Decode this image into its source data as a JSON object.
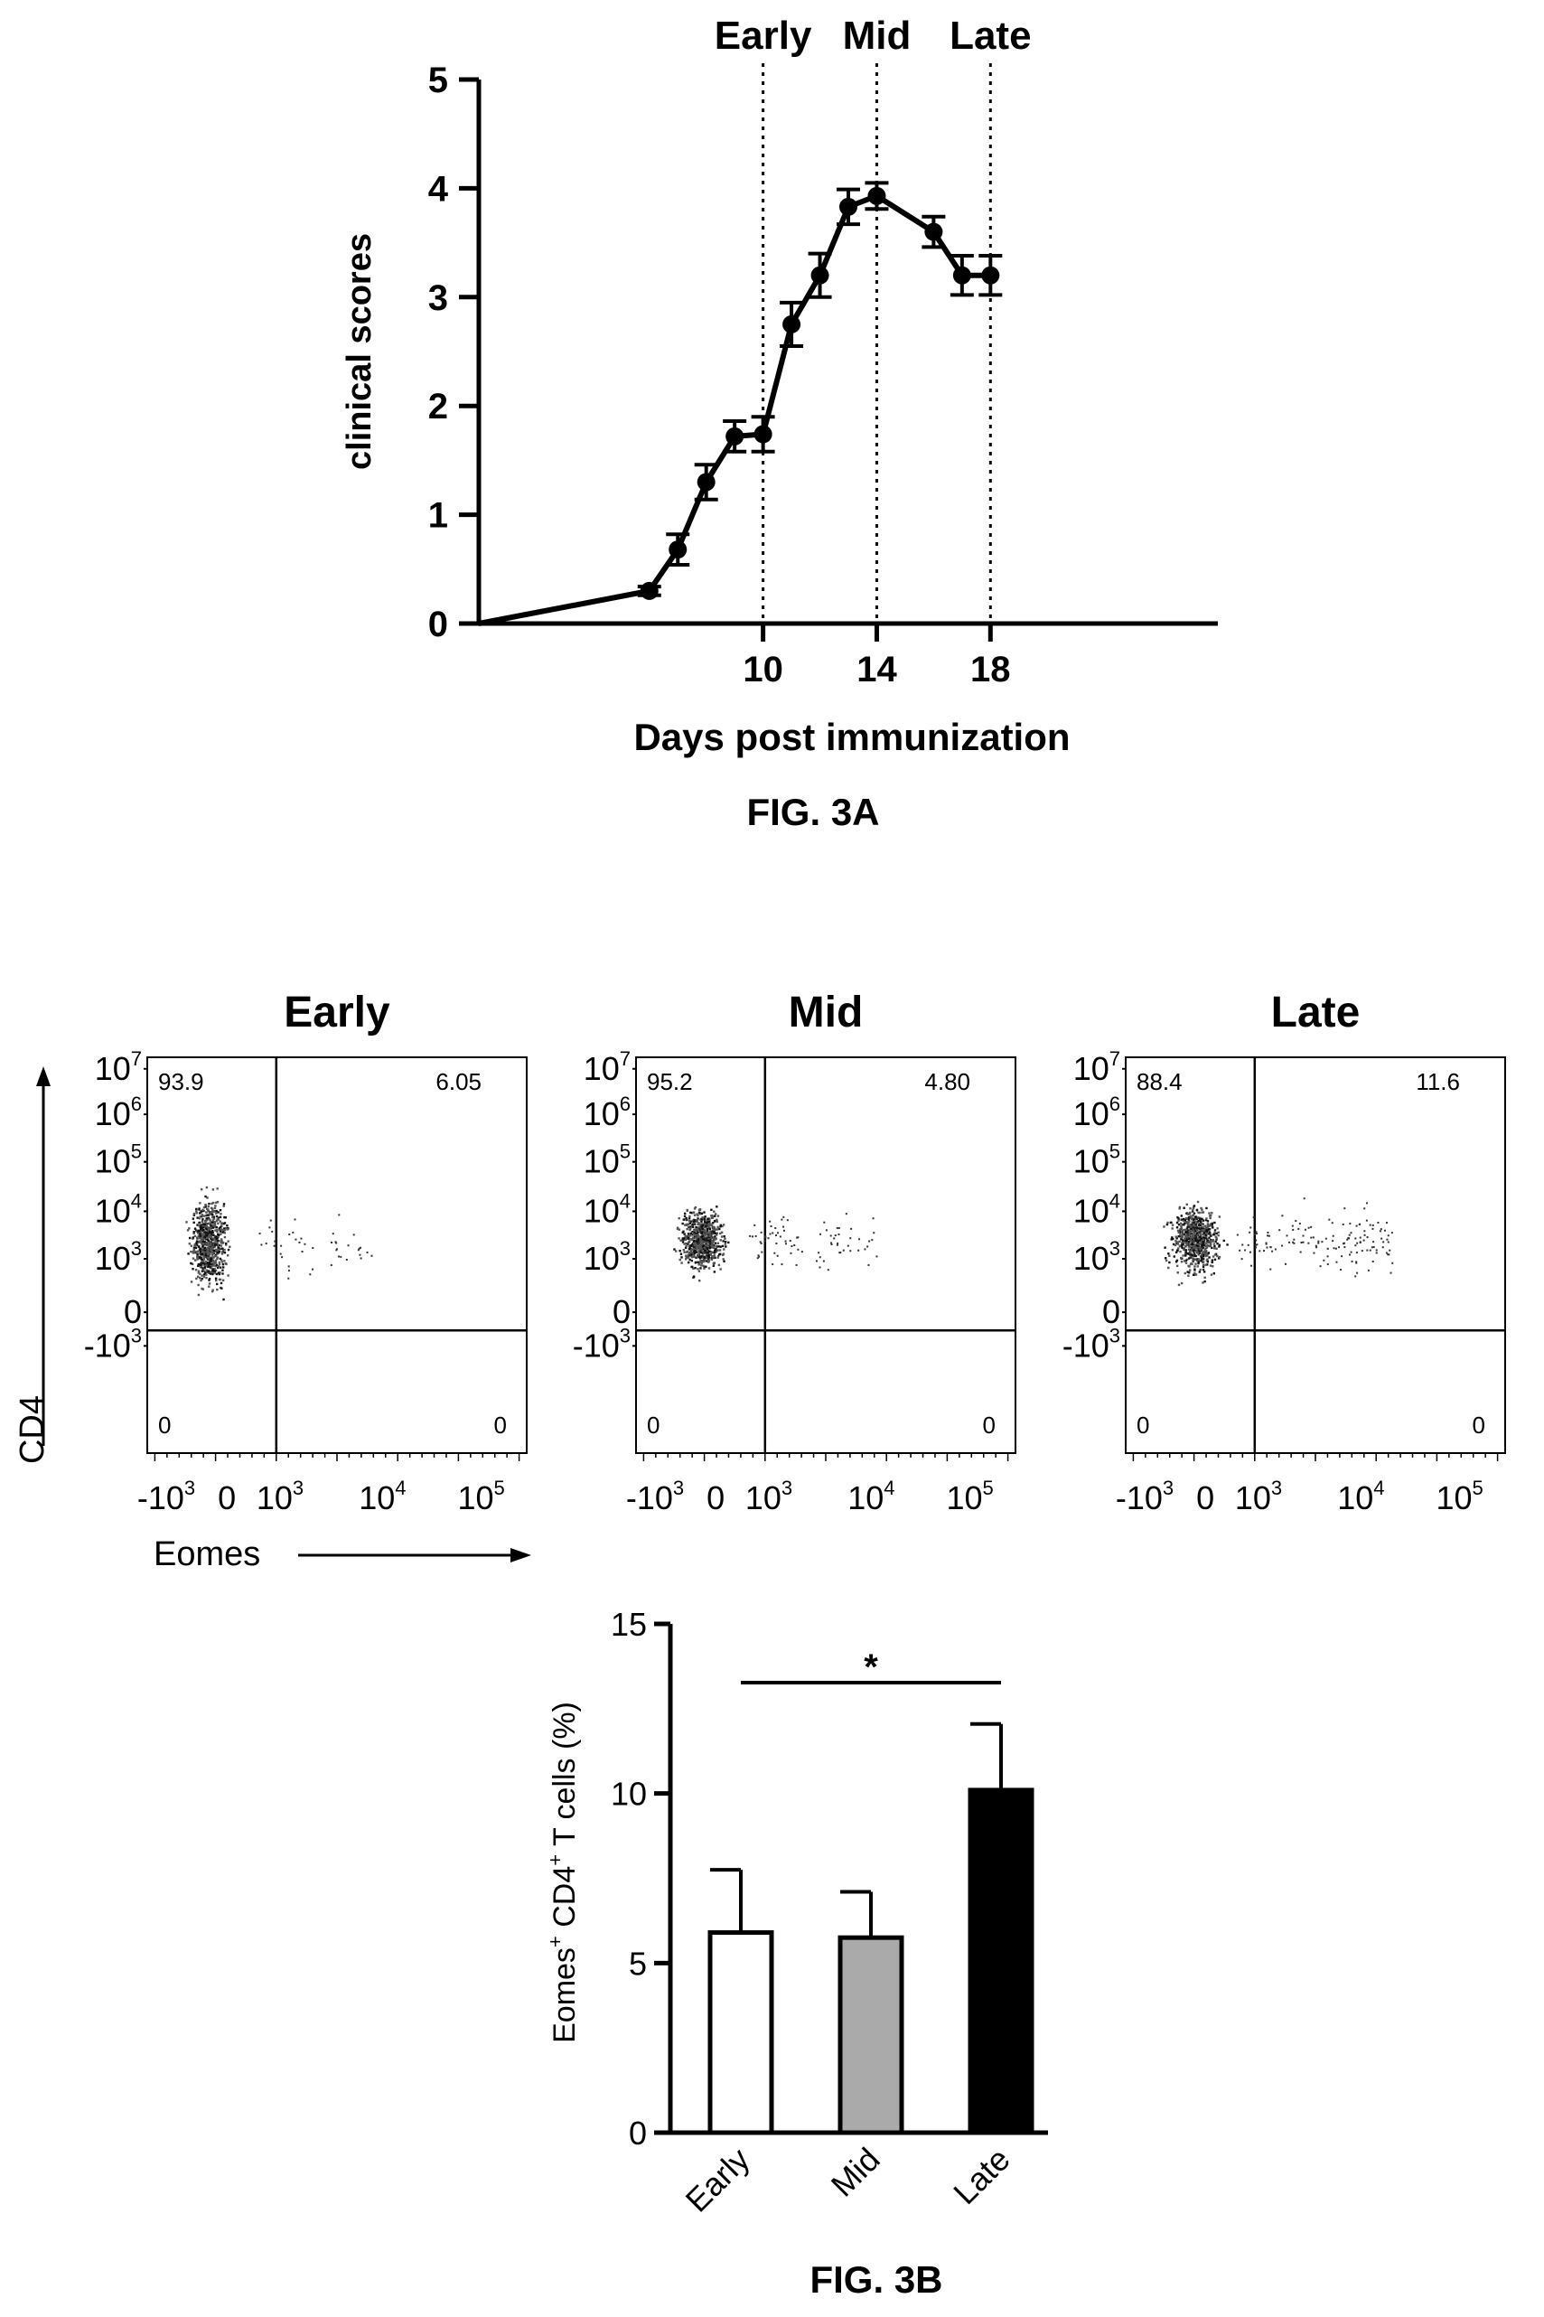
{
  "chart_data": [
    {
      "type": "line",
      "figure_label": "FIG. 3A",
      "xlabel": "Days post immunization",
      "ylabel": "clinical scores",
      "xlim": [
        0,
        26
      ],
      "ylim": [
        0,
        5
      ],
      "x_ticks": [
        10,
        14,
        18
      ],
      "y_ticks": [
        0,
        1,
        2,
        3,
        4,
        5
      ],
      "phase_markers": [
        {
          "label": "Early",
          "x": 10
        },
        {
          "label": "Mid",
          "x": 14
        },
        {
          "label": "Late",
          "x": 18
        }
      ],
      "series": [
        {
          "x": [
            0,
            6,
            7,
            8,
            9,
            10,
            11,
            12,
            13,
            14,
            16,
            17,
            18
          ],
          "values": [
            0,
            0.3,
            0.68,
            1.3,
            1.72,
            1.74,
            2.75,
            3.2,
            3.83,
            3.93,
            3.6,
            3.2,
            3.2
          ],
          "error": [
            0,
            0.04,
            0.14,
            0.16,
            0.14,
            0.16,
            0.2,
            0.2,
            0.16,
            0.12,
            0.14,
            0.18,
            0.18
          ]
        }
      ]
    },
    {
      "type": "scatter",
      "subtype": "flow-cytometry",
      "xlabel": "Eomes",
      "ylabel": "CD4",
      "x_tick_labels": [
        "-10",
        "0",
        "10",
        "10",
        "10"
      ],
      "x_tick_exps": [
        "3",
        "",
        "3",
        "4",
        "5"
      ],
      "y_tick_labels": [
        "10",
        "10",
        "10",
        "10",
        "10",
        "0",
        "-10"
      ],
      "y_tick_exps": [
        "7",
        "6",
        "5",
        "4",
        "3",
        "",
        "3"
      ],
      "panels": [
        {
          "title": "Early",
          "q_upper_left": "93.9",
          "q_upper_right": "6.05",
          "q_lower_left": "0",
          "q_lower_right": "0"
        },
        {
          "title": "Mid",
          "q_upper_left": "95.2",
          "q_upper_right": "4.80",
          "q_lower_left": "0",
          "q_lower_right": "0"
        },
        {
          "title": "Late",
          "q_upper_left": "88.4",
          "q_upper_right": "11.6",
          "q_lower_left": "0",
          "q_lower_right": "0"
        }
      ]
    },
    {
      "type": "bar",
      "figure_label": "FIG. 3B",
      "categories": [
        "Early",
        "Mid",
        "Late"
      ],
      "values": [
        5.9,
        5.75,
        10.1
      ],
      "errors": [
        1.85,
        1.35,
        1.95
      ],
      "colors": [
        "#ffffff",
        "#aaaaaa",
        "#000000"
      ],
      "ylabel_main": "Eomes",
      "ylabel_sup1": "+",
      "ylabel_mid": " CD4",
      "ylabel_sup2": "+",
      "ylabel_end": " T cells (%)",
      "ylim": [
        0,
        15
      ],
      "y_ticks": [
        0,
        5,
        10,
        15
      ],
      "significance": {
        "from": "Early",
        "to": "Late",
        "label": "*"
      }
    }
  ]
}
